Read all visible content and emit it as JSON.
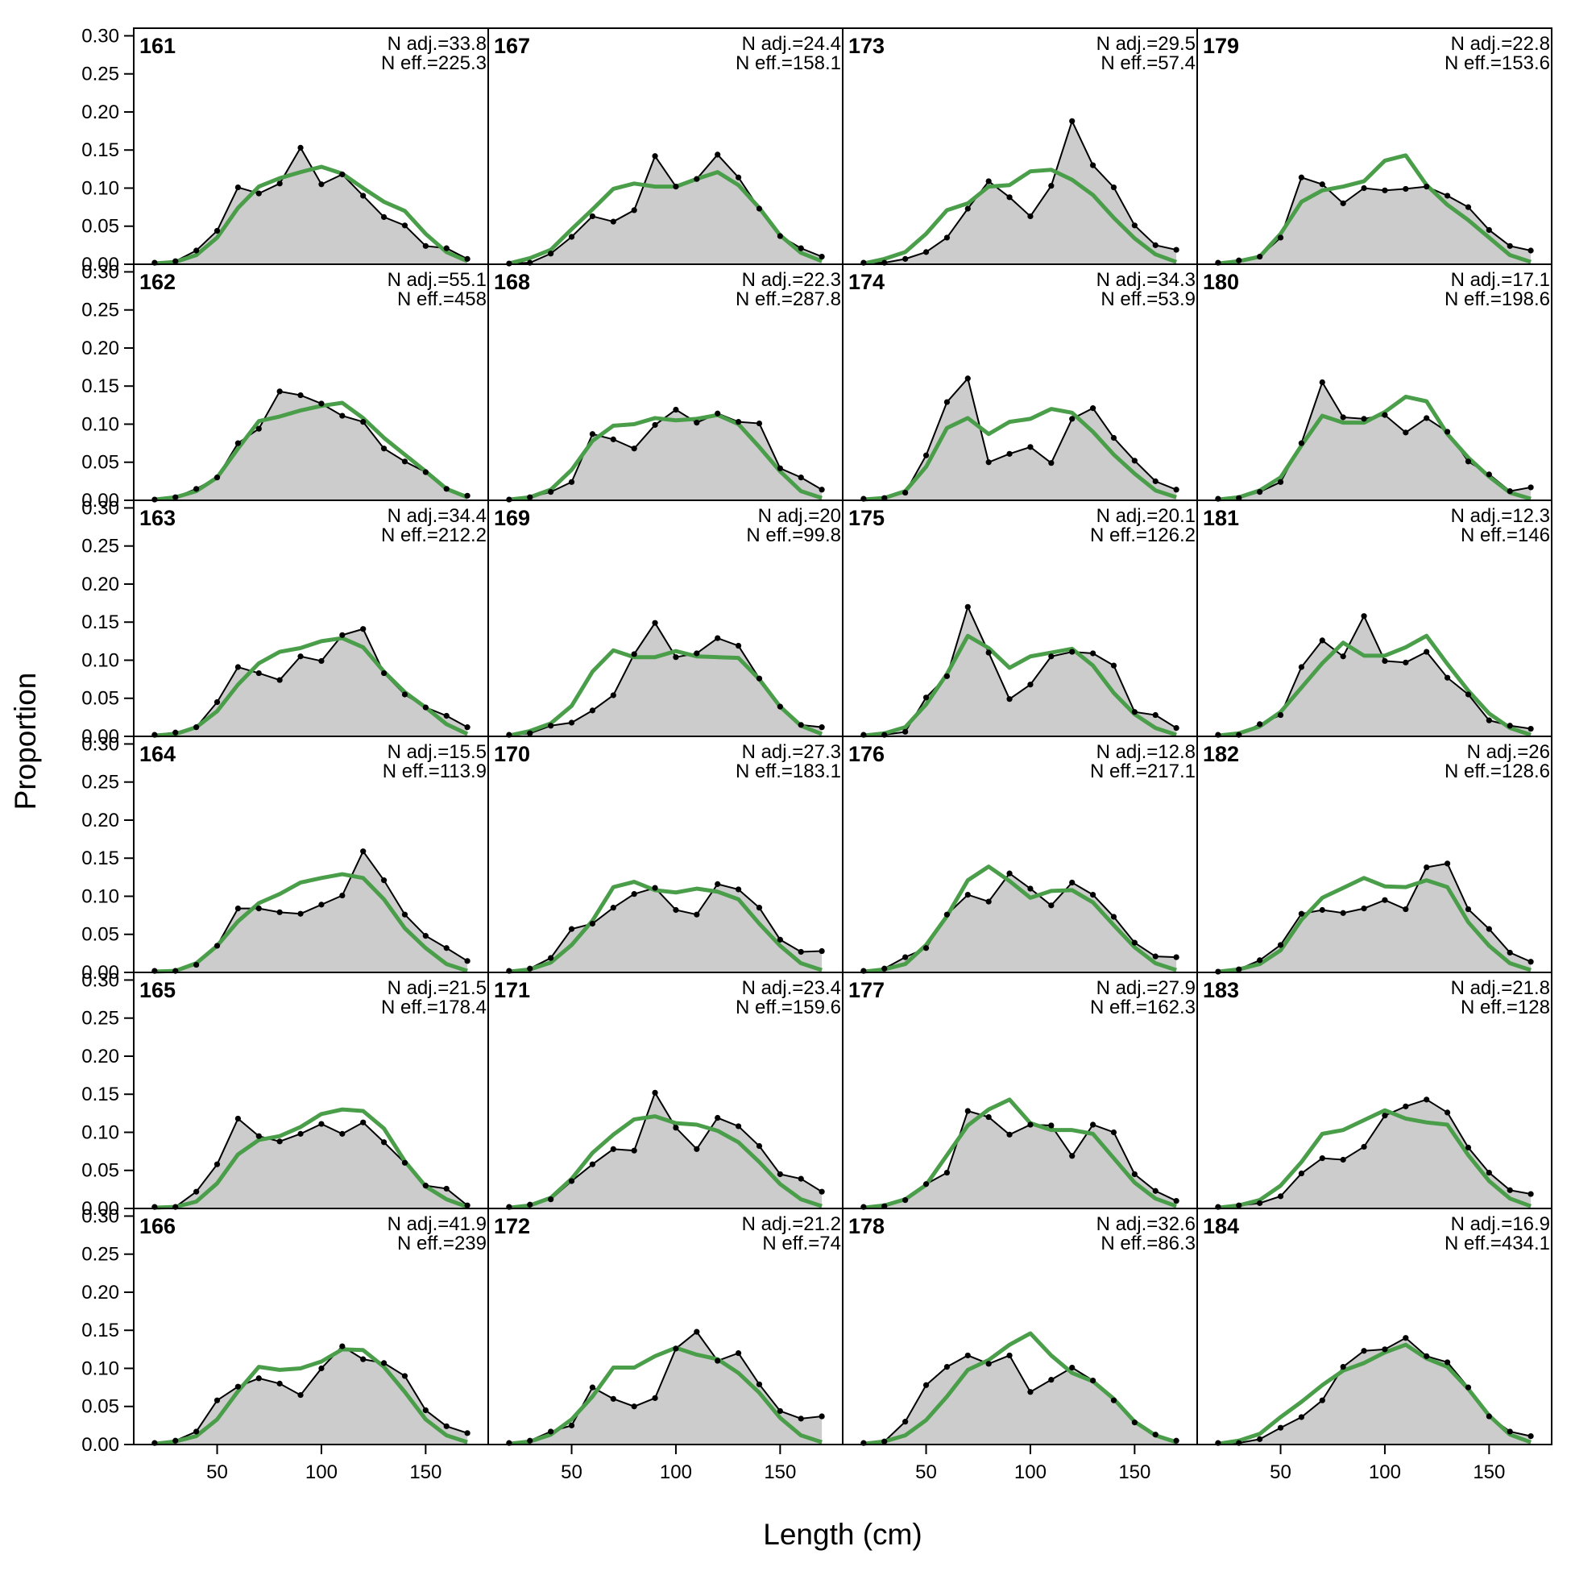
{
  "figure": {
    "xlabel": "Length (cm)",
    "ylabel": "Proportion",
    "xticks": [
      50,
      100,
      150
    ],
    "yticks": [
      "0.00",
      "0.05",
      "0.10",
      "0.15",
      "0.20",
      "0.25",
      "0.30"
    ],
    "colors": {
      "observed_fill": "#cccccc",
      "observed_line": "#000000",
      "expected_line": "#4a9e4a",
      "zero_line": "#bbbbbb",
      "frame": "#000000"
    }
  },
  "chart_data": {
    "type": "area",
    "grid": false,
    "layout": "6 rows x 4 columns of panels, column-major numbering",
    "xlim": [
      10,
      180
    ],
    "ylim": [
      0,
      0.31
    ],
    "x": [
      20,
      30,
      40,
      50,
      60,
      70,
      80,
      90,
      100,
      110,
      120,
      130,
      140,
      150,
      160,
      170
    ],
    "panels": [
      {
        "label": "161",
        "nadj": "N adj.=33.8",
        "neff": "N eff.=225.3",
        "observed": [
          0.002,
          0.004,
          0.018,
          0.044,
          0.101,
          0.093,
          0.106,
          0.153,
          0.105,
          0.118,
          0.09,
          0.062,
          0.051,
          0.024,
          0.021,
          0.007
        ],
        "expected": [
          0.001,
          0.003,
          0.012,
          0.035,
          0.074,
          0.102,
          0.113,
          0.121,
          0.128,
          0.119,
          0.1,
          0.082,
          0.07,
          0.04,
          0.016,
          0.004
        ]
      },
      {
        "label": "162",
        "nadj": "N adj.=55.1",
        "neff": "N eff.=458",
        "observed": [
          0.001,
          0.004,
          0.015,
          0.03,
          0.075,
          0.094,
          0.143,
          0.138,
          0.127,
          0.111,
          0.103,
          0.068,
          0.051,
          0.037,
          0.015,
          0.006
        ],
        "expected": [
          0.001,
          0.004,
          0.012,
          0.03,
          0.068,
          0.104,
          0.11,
          0.118,
          0.124,
          0.128,
          0.108,
          0.082,
          0.06,
          0.038,
          0.015,
          0.004
        ]
      },
      {
        "label": "163",
        "nadj": "N adj.=34.4",
        "neff": "N eff.=212.2",
        "observed": [
          0.002,
          0.005,
          0.012,
          0.045,
          0.091,
          0.083,
          0.074,
          0.105,
          0.099,
          0.133,
          0.141,
          0.083,
          0.055,
          0.038,
          0.027,
          0.012
        ],
        "expected": [
          0.001,
          0.003,
          0.012,
          0.033,
          0.068,
          0.096,
          0.111,
          0.116,
          0.125,
          0.129,
          0.117,
          0.085,
          0.058,
          0.038,
          0.016,
          0.003
        ]
      },
      {
        "label": "164",
        "nadj": "N adj.=15.5",
        "neff": "N eff.=113.9",
        "observed": [
          0.002,
          0.002,
          0.01,
          0.035,
          0.084,
          0.084,
          0.079,
          0.077,
          0.089,
          0.101,
          0.159,
          0.121,
          0.076,
          0.048,
          0.032,
          0.015
        ],
        "expected": [
          0.001,
          0.002,
          0.012,
          0.035,
          0.067,
          0.091,
          0.103,
          0.118,
          0.124,
          0.129,
          0.124,
          0.096,
          0.058,
          0.032,
          0.011,
          0.002
        ]
      },
      {
        "label": "165",
        "nadj": "N adj.=21.5",
        "neff": "N eff.=178.4",
        "observed": [
          0.002,
          0.002,
          0.022,
          0.058,
          0.118,
          0.095,
          0.088,
          0.098,
          0.111,
          0.098,
          0.113,
          0.087,
          0.06,
          0.03,
          0.026,
          0.004
        ],
        "expected": [
          0.001,
          0.002,
          0.009,
          0.033,
          0.071,
          0.09,
          0.095,
          0.107,
          0.124,
          0.13,
          0.128,
          0.105,
          0.062,
          0.029,
          0.012,
          0.002
        ]
      },
      {
        "label": "166",
        "nadj": "N adj.=41.9",
        "neff": "N eff.=239",
        "observed": [
          0.002,
          0.005,
          0.017,
          0.058,
          0.076,
          0.087,
          0.08,
          0.065,
          0.1,
          0.129,
          0.112,
          0.107,
          0.09,
          0.045,
          0.024,
          0.015
        ],
        "expected": [
          0.001,
          0.004,
          0.011,
          0.033,
          0.07,
          0.102,
          0.098,
          0.1,
          0.109,
          0.125,
          0.124,
          0.102,
          0.069,
          0.033,
          0.012,
          0.003
        ]
      },
      {
        "label": "167",
        "nadj": "N adj.=24.4",
        "neff": "N eff.=158.1",
        "observed": [
          0.001,
          0.002,
          0.014,
          0.036,
          0.063,
          0.056,
          0.071,
          0.142,
          0.102,
          0.112,
          0.144,
          0.114,
          0.073,
          0.037,
          0.021,
          0.01
        ],
        "expected": [
          0.001,
          0.008,
          0.019,
          0.046,
          0.072,
          0.099,
          0.106,
          0.102,
          0.102,
          0.112,
          0.121,
          0.104,
          0.074,
          0.038,
          0.015,
          0.004
        ]
      },
      {
        "label": "168",
        "nadj": "N adj.=22.3",
        "neff": "N eff.=287.8",
        "observed": [
          0.001,
          0.004,
          0.011,
          0.024,
          0.087,
          0.08,
          0.068,
          0.099,
          0.119,
          0.102,
          0.114,
          0.103,
          0.101,
          0.042,
          0.03,
          0.014
        ],
        "expected": [
          0.001,
          0.004,
          0.014,
          0.04,
          0.078,
          0.098,
          0.1,
          0.108,
          0.105,
          0.107,
          0.112,
          0.1,
          0.07,
          0.038,
          0.012,
          0.003
        ]
      },
      {
        "label": "169",
        "nadj": "N adj.=20",
        "neff": "N eff.=99.8",
        "observed": [
          0.002,
          0.004,
          0.014,
          0.018,
          0.034,
          0.054,
          0.108,
          0.149,
          0.104,
          0.109,
          0.129,
          0.119,
          0.076,
          0.039,
          0.015,
          0.012
        ],
        "expected": [
          0.001,
          0.007,
          0.017,
          0.04,
          0.085,
          0.113,
          0.104,
          0.104,
          0.112,
          0.105,
          0.104,
          0.103,
          0.075,
          0.039,
          0.014,
          0.003
        ]
      },
      {
        "label": "170",
        "nadj": "N adj.=27.3",
        "neff": "N eff.=183.1",
        "observed": [
          0.002,
          0.005,
          0.019,
          0.057,
          0.064,
          0.085,
          0.103,
          0.111,
          0.082,
          0.076,
          0.116,
          0.109,
          0.085,
          0.043,
          0.027,
          0.028
        ],
        "expected": [
          0.001,
          0.004,
          0.013,
          0.036,
          0.068,
          0.112,
          0.119,
          0.108,
          0.105,
          0.11,
          0.106,
          0.096,
          0.064,
          0.035,
          0.012,
          0.003
        ]
      },
      {
        "label": "171",
        "nadj": "N adj.=23.4",
        "neff": "N eff.=159.6",
        "observed": [
          0.002,
          0.005,
          0.012,
          0.036,
          0.058,
          0.078,
          0.076,
          0.152,
          0.106,
          0.078,
          0.119,
          0.108,
          0.082,
          0.045,
          0.039,
          0.022
        ],
        "expected": [
          0.001,
          0.004,
          0.014,
          0.039,
          0.073,
          0.097,
          0.117,
          0.121,
          0.112,
          0.11,
          0.102,
          0.087,
          0.061,
          0.032,
          0.012,
          0.003
        ]
      },
      {
        "label": "172",
        "nadj": "N adj.=21.2",
        "neff": "N eff.=74",
        "observed": [
          0.002,
          0.005,
          0.017,
          0.025,
          0.075,
          0.06,
          0.05,
          0.061,
          0.126,
          0.148,
          0.11,
          0.12,
          0.079,
          0.044,
          0.034,
          0.037
        ],
        "expected": [
          0.001,
          0.004,
          0.013,
          0.033,
          0.063,
          0.101,
          0.101,
          0.116,
          0.127,
          0.118,
          0.112,
          0.094,
          0.068,
          0.035,
          0.012,
          0.003
        ]
      },
      {
        "label": "173",
        "nadj": "N adj.=29.5",
        "neff": "N eff.=57.4",
        "observed": [
          0.002,
          0.002,
          0.007,
          0.016,
          0.035,
          0.073,
          0.109,
          0.088,
          0.063,
          0.103,
          0.188,
          0.13,
          0.101,
          0.051,
          0.025,
          0.019
        ],
        "expected": [
          0.001,
          0.007,
          0.016,
          0.04,
          0.071,
          0.08,
          0.102,
          0.104,
          0.122,
          0.124,
          0.111,
          0.091,
          0.061,
          0.034,
          0.013,
          0.003
        ]
      },
      {
        "label": "174",
        "nadj": "N adj.=34.3",
        "neff": "N eff.=53.9",
        "observed": [
          0.002,
          0.003,
          0.01,
          0.059,
          0.129,
          0.16,
          0.05,
          0.061,
          0.07,
          0.049,
          0.107,
          0.121,
          0.082,
          0.052,
          0.025,
          0.014
        ],
        "expected": [
          0.001,
          0.003,
          0.012,
          0.044,
          0.095,
          0.108,
          0.087,
          0.103,
          0.107,
          0.12,
          0.115,
          0.09,
          0.06,
          0.035,
          0.013,
          0.004
        ]
      },
      {
        "label": "175",
        "nadj": "N adj.=20.1",
        "neff": "N eff.=126.2",
        "observed": [
          0.002,
          0.002,
          0.006,
          0.051,
          0.079,
          0.17,
          0.11,
          0.049,
          0.068,
          0.105,
          0.111,
          0.109,
          0.093,
          0.032,
          0.028,
          0.011
        ],
        "expected": [
          0.001,
          0.004,
          0.012,
          0.042,
          0.082,
          0.132,
          0.116,
          0.09,
          0.105,
          0.11,
          0.115,
          0.093,
          0.057,
          0.029,
          0.011,
          0.002
        ]
      },
      {
        "label": "176",
        "nadj": "N adj.=12.8",
        "neff": "N eff.=217.1",
        "observed": [
          0.002,
          0.005,
          0.02,
          0.032,
          0.076,
          0.102,
          0.093,
          0.13,
          0.11,
          0.088,
          0.118,
          0.102,
          0.073,
          0.039,
          0.021,
          0.02
        ],
        "expected": [
          0.001,
          0.004,
          0.011,
          0.036,
          0.074,
          0.121,
          0.139,
          0.12,
          0.098,
          0.107,
          0.108,
          0.092,
          0.062,
          0.033,
          0.012,
          0.003
        ]
      },
      {
        "label": "177",
        "nadj": "N adj.=27.9",
        "neff": "N eff.=162.3",
        "observed": [
          0.002,
          0.003,
          0.011,
          0.032,
          0.047,
          0.128,
          0.12,
          0.097,
          0.11,
          0.109,
          0.069,
          0.11,
          0.1,
          0.045,
          0.023,
          0.01
        ],
        "expected": [
          0.001,
          0.004,
          0.012,
          0.031,
          0.07,
          0.109,
          0.13,
          0.143,
          0.112,
          0.103,
          0.103,
          0.098,
          0.066,
          0.034,
          0.013,
          0.003
        ]
      },
      {
        "label": "178",
        "nadj": "N adj.=32.6",
        "neff": "N eff.=86.3",
        "observed": [
          0.002,
          0.004,
          0.03,
          0.078,
          0.102,
          0.117,
          0.106,
          0.117,
          0.069,
          0.085,
          0.101,
          0.084,
          0.058,
          0.029,
          0.013,
          0.005
        ],
        "expected": [
          0.001,
          0.004,
          0.012,
          0.032,
          0.063,
          0.098,
          0.111,
          0.131,
          0.146,
          0.117,
          0.094,
          0.083,
          0.06,
          0.03,
          0.012,
          0.003
        ]
      },
      {
        "label": "179",
        "nadj": "N adj.=22.8",
        "neff": "N eff.=153.6",
        "observed": [
          0.002,
          0.005,
          0.01,
          0.035,
          0.114,
          0.105,
          0.08,
          0.1,
          0.097,
          0.099,
          0.102,
          0.09,
          0.075,
          0.045,
          0.024,
          0.018
        ],
        "expected": [
          0.001,
          0.004,
          0.01,
          0.04,
          0.082,
          0.097,
          0.102,
          0.109,
          0.136,
          0.143,
          0.104,
          0.078,
          0.058,
          0.035,
          0.012,
          0.003
        ]
      },
      {
        "label": "180",
        "nadj": "N adj.=17.1",
        "neff": "N eff.=198.6",
        "observed": [
          0.002,
          0.003,
          0.011,
          0.024,
          0.075,
          0.155,
          0.109,
          0.107,
          0.112,
          0.089,
          0.108,
          0.09,
          0.051,
          0.034,
          0.012,
          0.017
        ],
        "expected": [
          0.001,
          0.004,
          0.013,
          0.03,
          0.072,
          0.111,
          0.102,
          0.102,
          0.116,
          0.136,
          0.13,
          0.087,
          0.056,
          0.031,
          0.01,
          0.002
        ]
      },
      {
        "label": "181",
        "nadj": "N adj.=12.3",
        "neff": "N eff.=146",
        "observed": [
          0.002,
          0.002,
          0.016,
          0.028,
          0.091,
          0.126,
          0.105,
          0.158,
          0.099,
          0.097,
          0.111,
          0.077,
          0.055,
          0.021,
          0.014,
          0.01
        ],
        "expected": [
          0.001,
          0.004,
          0.013,
          0.032,
          0.064,
          0.096,
          0.123,
          0.106,
          0.106,
          0.117,
          0.132,
          0.095,
          0.06,
          0.03,
          0.011,
          0.002
        ]
      },
      {
        "label": "182",
        "nadj": "N adj.=26",
        "neff": "N eff.=128.6",
        "observed": [
          0.001,
          0.004,
          0.016,
          0.036,
          0.077,
          0.082,
          0.078,
          0.084,
          0.095,
          0.083,
          0.138,
          0.143,
          0.083,
          0.057,
          0.026,
          0.014
        ],
        "expected": [
          0.001,
          0.004,
          0.011,
          0.029,
          0.069,
          0.098,
          0.111,
          0.124,
          0.113,
          0.112,
          0.121,
          0.112,
          0.066,
          0.035,
          0.012,
          0.003
        ]
      },
      {
        "label": "183",
        "nadj": "N adj.=21.8",
        "neff": "N eff.=128",
        "observed": [
          0.002,
          0.004,
          0.007,
          0.016,
          0.046,
          0.066,
          0.064,
          0.081,
          0.122,
          0.134,
          0.143,
          0.126,
          0.08,
          0.047,
          0.024,
          0.019
        ],
        "expected": [
          0.001,
          0.004,
          0.011,
          0.03,
          0.061,
          0.098,
          0.103,
          0.116,
          0.129,
          0.118,
          0.113,
          0.11,
          0.07,
          0.036,
          0.013,
          0.003
        ]
      },
      {
        "label": "184",
        "nadj": "N adj.=16.9",
        "neff": "N eff.=434.1",
        "observed": [
          0.002,
          0.002,
          0.007,
          0.022,
          0.036,
          0.058,
          0.102,
          0.123,
          0.125,
          0.14,
          0.116,
          0.108,
          0.075,
          0.037,
          0.017,
          0.011
        ],
        "expected": [
          0.001,
          0.005,
          0.014,
          0.036,
          0.056,
          0.078,
          0.097,
          0.107,
          0.121,
          0.131,
          0.113,
          0.102,
          0.073,
          0.038,
          0.013,
          0.003
        ]
      }
    ]
  }
}
